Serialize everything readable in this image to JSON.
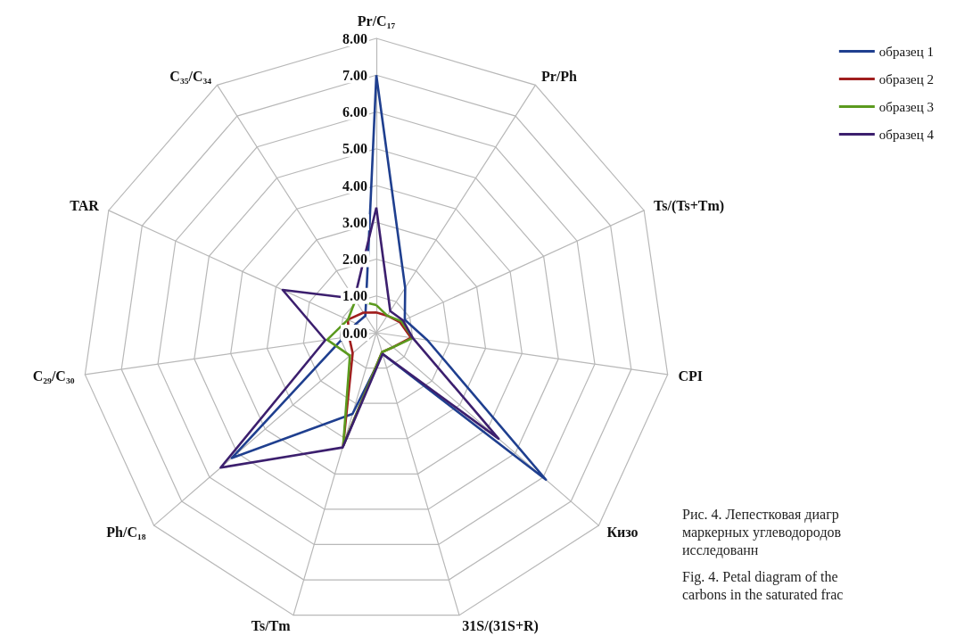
{
  "chart_data": {
    "type": "radar",
    "categories": [
      "Pr/C₁₇",
      "Pr/Ph",
      "Ts/(Ts+Tm)",
      "CPI",
      "Кизо",
      "31S/(31S+R)",
      "Ts/Tm",
      "Ph/C₁₈",
      "C₂₉/C₃₀",
      "TAR",
      "C₃₅/C₃₄"
    ],
    "series": [
      {
        "name": "образец 1",
        "color": "#1f3f8f",
        "values": [
          7.0,
          1.45,
          0.85,
          1.4,
          6.1,
          0.6,
          2.3,
          5.2,
          0.9,
          0.6,
          0.55
        ]
      },
      {
        "name": "образец 2",
        "color": "#a01e1e",
        "values": [
          0.55,
          0.55,
          0.7,
          0.95,
          0.6,
          0.55,
          3.2,
          0.85,
          0.75,
          0.85,
          0.65
        ]
      },
      {
        "name": "образец 3",
        "color": "#5b9a1e",
        "values": [
          0.75,
          0.55,
          0.75,
          1.0,
          0.6,
          0.55,
          3.2,
          0.95,
          1.35,
          0.85,
          1.05
        ]
      },
      {
        "name": "образец 4",
        "color": "#3c1f6e",
        "values": [
          3.4,
          0.7,
          0.8,
          1.0,
          4.4,
          0.6,
          3.25,
          5.6,
          1.4,
          2.8,
          1.1
        ]
      }
    ],
    "ylim": [
      0,
      8
    ],
    "yticks": [
      {
        "value": 0,
        "label": "0.00"
      },
      {
        "value": 1,
        "label": "1.00"
      },
      {
        "value": 2,
        "label": "2.00"
      },
      {
        "value": 3,
        "label": "3.00"
      },
      {
        "value": 4,
        "label": "4.00"
      },
      {
        "value": 5,
        "label": "5.00"
      },
      {
        "value": 6,
        "label": "6.00"
      },
      {
        "value": 7,
        "label": "7.00"
      },
      {
        "value": 8,
        "label": "8.00"
      }
    ],
    "grid": true,
    "legend": "top right",
    "marker": "none",
    "line_style": "solid",
    "annotations": [
      "Рис. 4. Лепестковая диагр\nмаркерных углеводородов\nисследованн",
      "Fig. 4. Petal diagram of the\ncarbons in the saturated frac"
    ]
  }
}
